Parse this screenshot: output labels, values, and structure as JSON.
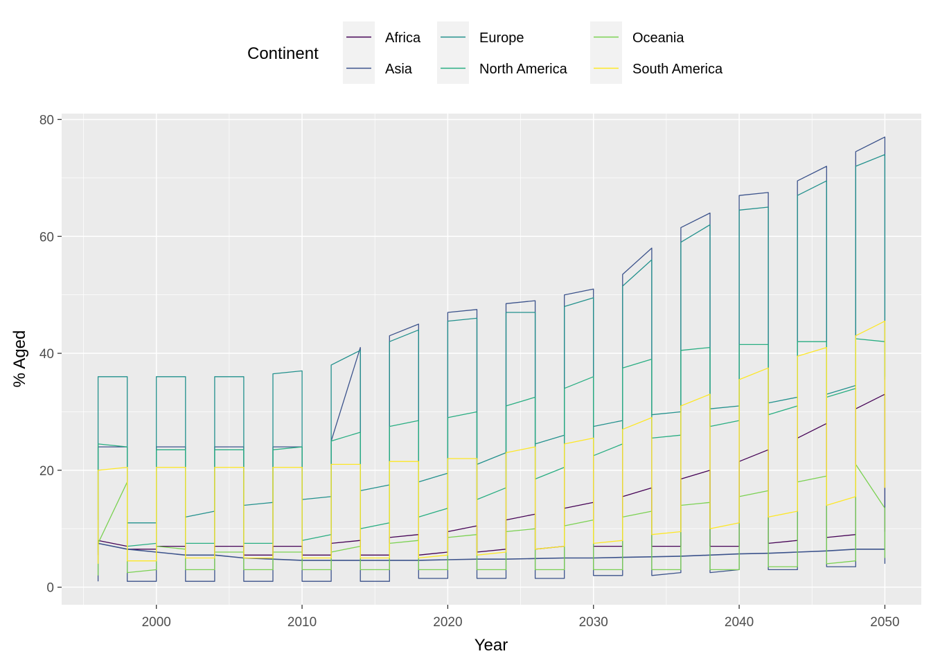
{
  "chart_data": {
    "type": "line",
    "title": "",
    "xlabel": "Year",
    "ylabel": "% Aged",
    "xlim": [
      1993.5,
      2052.5
    ],
    "ylim": [
      -3,
      81
    ],
    "x_ticks": [
      2000,
      2010,
      2020,
      2030,
      2040,
      2050
    ],
    "x_tick_labels": [
      "2000",
      "2010",
      "2020",
      "2030",
      "2040",
      "2050"
    ],
    "y_ticks": [
      0,
      20,
      40,
      60,
      80
    ],
    "y_tick_labels": [
      "0",
      "20",
      "40",
      "60",
      "80"
    ],
    "grid": true,
    "legend": {
      "title": "Continent",
      "position": "top",
      "ncol": 3
    },
    "years": [
      1996,
      1998,
      2000,
      2002,
      2004,
      2006,
      2008,
      2010,
      2012,
      2014,
      2016,
      2018,
      2020,
      2022,
      2024,
      2026,
      2028,
      2030,
      2032,
      2034,
      2036,
      2038,
      2040,
      2042,
      2044,
      2046,
      2048,
      2050
    ],
    "series": [
      {
        "name": "Africa",
        "color": "#440154",
        "low": [
          5.5,
          6.5,
          6.5,
          5.5,
          5.5,
          5.5,
          5.5,
          5.5,
          5.5,
          5.5,
          5.5,
          5.5,
          6,
          6,
          6.5,
          6.5,
          7,
          7,
          7,
          7,
          7,
          7,
          7,
          7.5,
          8,
          8.5,
          9,
          9.5
        ],
        "high": [
          8,
          7,
          7,
          7,
          7,
          7,
          7,
          7,
          7.5,
          8,
          8.5,
          9,
          9.5,
          10.5,
          11.5,
          12.5,
          13.5,
          14.5,
          15.5,
          17,
          18.5,
          20,
          21.5,
          23.5,
          25.5,
          28,
          30.5,
          33
        ]
      },
      {
        "name": "Asia",
        "color": "#3b528b",
        "low": [
          1,
          1,
          1,
          1,
          1,
          1,
          1,
          1,
          1,
          1,
          1,
          1.5,
          1.5,
          1.5,
          1.5,
          1.5,
          1.5,
          2,
          2,
          2,
          2.5,
          2.5,
          3,
          3,
          3,
          3.5,
          3.5,
          4
        ],
        "high": [
          24,
          24,
          24,
          24,
          24,
          24,
          24,
          24,
          25,
          41,
          43,
          45,
          47,
          47.5,
          48.5,
          49,
          50,
          51,
          53.5,
          58,
          61.5,
          64,
          67,
          67.5,
          69.5,
          72,
          74.5,
          77
        ],
        "mid": [
          7.5,
          6.5,
          6,
          5.5,
          5.5,
          5,
          4.8,
          4.6,
          4.6,
          4.6,
          4.6,
          4.6,
          4.7,
          4.8,
          4.8,
          4.9,
          5,
          5,
          5.1,
          5.2,
          5.3,
          5.5,
          5.7,
          5.8,
          6,
          6.2,
          6.5,
          6.5
        ]
      },
      {
        "name": "Europe",
        "color": "#21908c",
        "low": [
          11.5,
          11,
          11,
          12,
          13,
          14,
          14.5,
          15,
          15.5,
          16.5,
          17.5,
          18,
          19.5,
          21,
          23,
          24.5,
          26,
          27.5,
          28.5,
          29.5,
          30,
          30.5,
          31,
          31.5,
          32.5,
          33,
          34.5,
          35.5
        ],
        "high": [
          36,
          36,
          36,
          36,
          36,
          36,
          36.5,
          37,
          38,
          40.5,
          42,
          44,
          45.5,
          46,
          47,
          47,
          48,
          49.5,
          51.5,
          56,
          59,
          62,
          64.5,
          65,
          67,
          69.5,
          72,
          74
        ]
      },
      {
        "name": "North America",
        "color": "#27ad81",
        "low": [
          6,
          7,
          7.5,
          7.5,
          7.5,
          7.5,
          7.5,
          8,
          9,
          10,
          11,
          12,
          13.5,
          15,
          17,
          18.5,
          20.5,
          22.5,
          24.5,
          25.5,
          26,
          27.5,
          28.5,
          29.5,
          31,
          32.5,
          34,
          36
        ],
        "high": [
          24.5,
          24,
          23.5,
          23.5,
          23.5,
          23.5,
          23.5,
          24,
          25,
          26.5,
          27.5,
          28.5,
          29,
          30,
          31,
          32.5,
          34,
          36,
          37.5,
          39,
          40.5,
          41,
          41.5,
          41.5,
          42,
          42,
          42.5,
          42
        ]
      },
      {
        "name": "Oceania",
        "color": "#7ad151",
        "low": [
          2,
          2.5,
          3,
          3,
          3,
          3,
          3,
          3,
          3,
          3,
          3,
          3,
          3,
          3,
          3,
          3,
          3,
          3,
          3,
          3,
          3,
          3,
          3,
          3.5,
          3.5,
          4,
          4.5,
          5
        ],
        "high": [
          7.5,
          18,
          7,
          6.5,
          6,
          6,
          6,
          6,
          6,
          7,
          7.5,
          8,
          8.5,
          9,
          9.5,
          10,
          10.5,
          11.5,
          12,
          13,
          14,
          14.5,
          15.5,
          16.5,
          18,
          19,
          21,
          13.5
        ]
      },
      {
        "name": "South America",
        "color": "#fde725",
        "low": [
          4,
          4.5,
          4.5,
          5,
          5,
          5,
          5,
          5,
          5,
          5,
          5,
          5,
          5.5,
          5.5,
          6,
          6.5,
          7,
          7.5,
          8,
          9,
          9.5,
          10,
          11,
          12,
          13,
          14,
          15.5,
          17
        ],
        "high": [
          20,
          20.5,
          20.5,
          20.5,
          20.5,
          20.5,
          20.5,
          20.5,
          21,
          21,
          21.5,
          21.5,
          22,
          22,
          23,
          24,
          24.5,
          25.5,
          27,
          29,
          31,
          33,
          35.5,
          37.5,
          39.5,
          41,
          43,
          45.5
        ]
      }
    ]
  }
}
